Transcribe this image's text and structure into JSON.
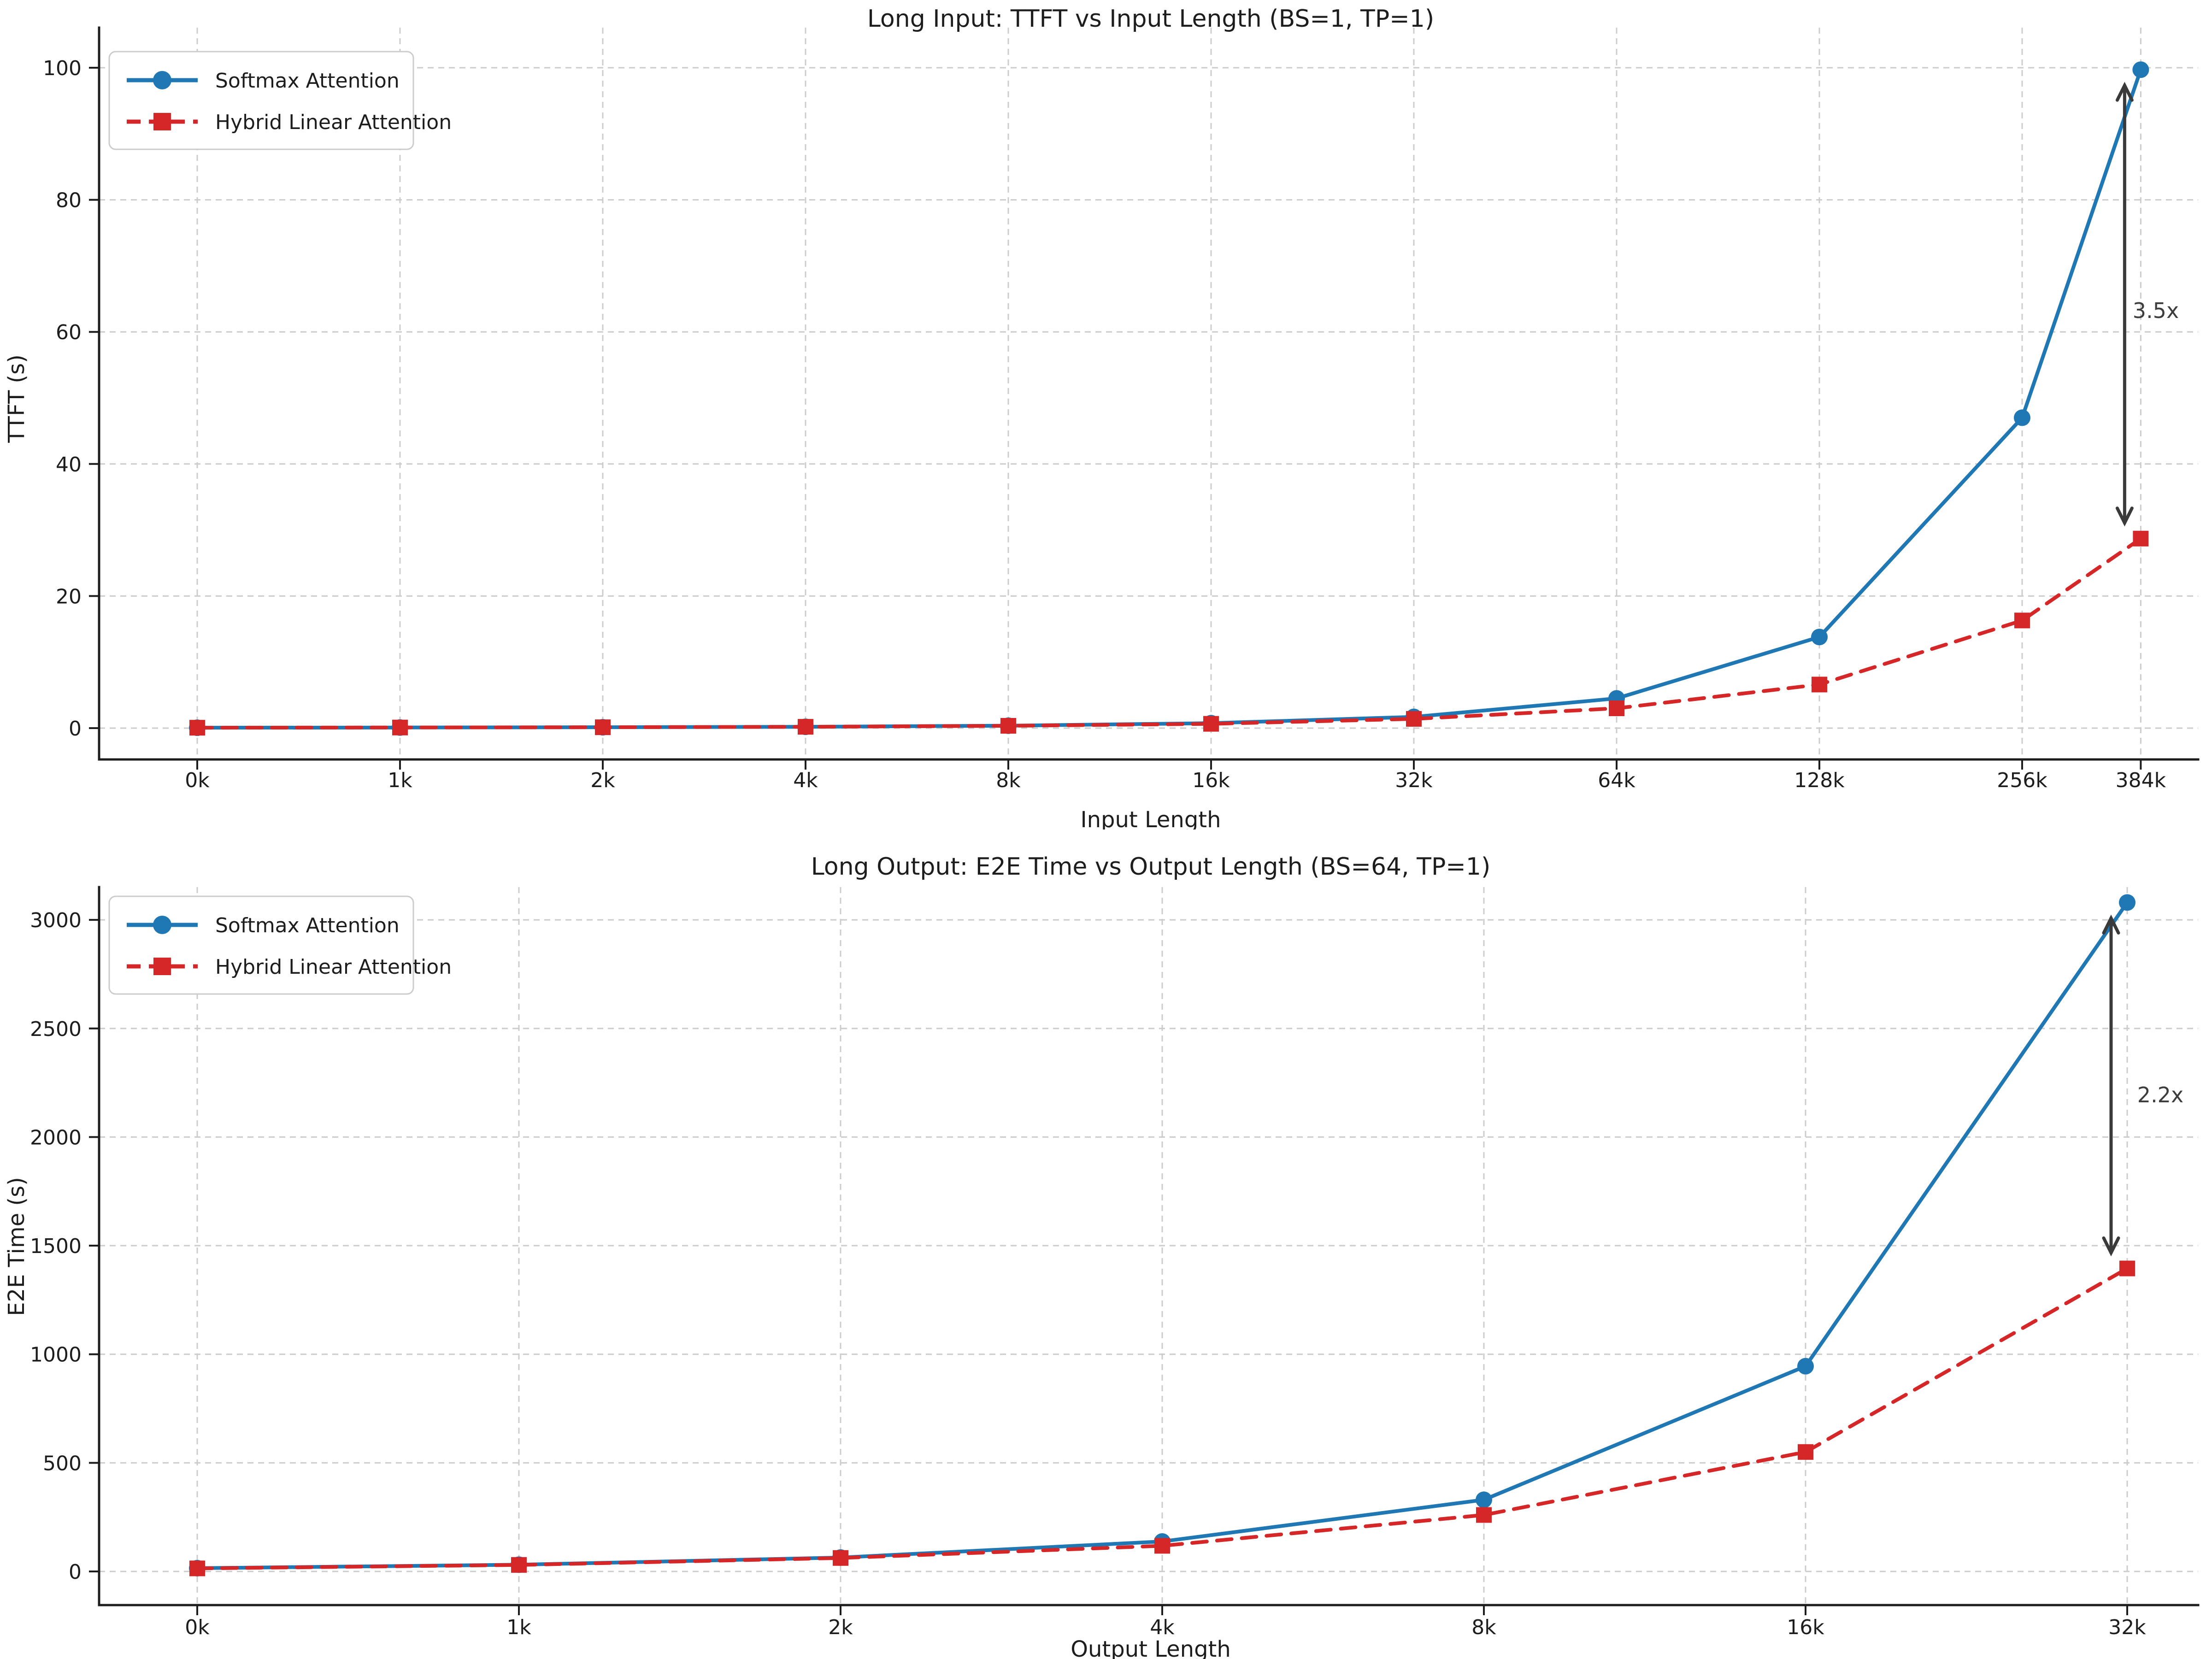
{
  "colors": {
    "softmax_series": "#1f77b4",
    "hybrid_series": "#d62728",
    "grid": "#cccccc",
    "axis": "#1d1d1d",
    "legend_border": "#cccccc",
    "annotation_arrow": "#3a3a3a",
    "annotation_text": "#3d3d3d",
    "background": "#ffffff"
  },
  "chart_data": [
    {
      "type": "line",
      "title": "Long Input: TTFT vs Input Length (BS=1, TP=1)",
      "xlabel": "Input Length",
      "ylabel": "TTFT (s)",
      "x_scale": "log2",
      "x_tick_labels": [
        "0k",
        "1k",
        "2k",
        "4k",
        "8k",
        "16k",
        "32k",
        "64k",
        "128k",
        "256k",
        "384k"
      ],
      "x_values_thousands": [
        0.5,
        1,
        2,
        4,
        8,
        16,
        32,
        64,
        128,
        256,
        384
      ],
      "y_ticks": [
        0,
        20,
        40,
        60,
        80,
        100
      ],
      "ylim": [
        -5,
        106
      ],
      "grid": "dashed",
      "legend_position": "upper left",
      "series": [
        {
          "name": "Softmax Attention",
          "color": "#1f77b4",
          "linestyle": "solid",
          "marker": "circle",
          "values": [
            0.06,
            0.09,
            0.13,
            0.2,
            0.37,
            0.75,
            1.7,
            4.5,
            13.8,
            47.0,
            99.7
          ]
        },
        {
          "name": "Hybrid Linear Attention",
          "color": "#d62728",
          "linestyle": "dashed",
          "marker": "square",
          "values": [
            0.06,
            0.09,
            0.13,
            0.2,
            0.35,
            0.65,
            1.4,
            3.0,
            6.6,
            16.3,
            28.7
          ]
        }
      ],
      "annotation": {
        "label": "3.5x",
        "at_x_label": "384k"
      }
    },
    {
      "type": "line",
      "title": "Long Output: E2E Time vs Output Length (BS=64, TP=1)",
      "xlabel": "Output Length",
      "ylabel": "E2E Time (s)",
      "x_scale": "log2",
      "x_tick_labels": [
        "0k",
        "1k",
        "2k",
        "4k",
        "8k",
        "16k",
        "32k"
      ],
      "x_values_thousands": [
        0.5,
        1,
        2,
        4,
        8,
        16,
        32
      ],
      "y_ticks": [
        0,
        500,
        1000,
        1500,
        2000,
        2500,
        3000
      ],
      "ylim": [
        -155,
        3150
      ],
      "grid": "dashed",
      "legend_position": "upper left",
      "series": [
        {
          "name": "Softmax Attention",
          "color": "#1f77b4",
          "linestyle": "solid",
          "marker": "circle",
          "values": [
            15,
            31,
            64,
            138,
            330,
            945,
            3080
          ]
        },
        {
          "name": "Hybrid Linear Attention",
          "color": "#d62728",
          "linestyle": "dashed",
          "marker": "square",
          "values": [
            14,
            30,
            62,
            118,
            260,
            550,
            1395
          ]
        }
      ],
      "annotation": {
        "label": "2.2x",
        "at_x_label": "32k"
      }
    }
  ]
}
